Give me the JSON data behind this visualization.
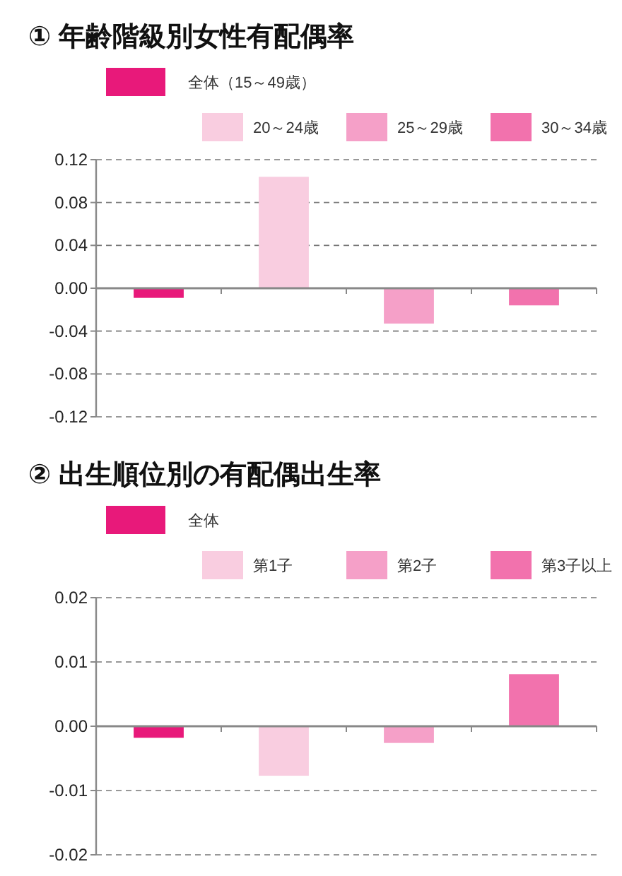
{
  "chart_data": [
    {
      "type": "bar",
      "title": "① 年齢階級別女性有配偶率",
      "categories": [
        null,
        null,
        null,
        null
      ],
      "series": [
        {
          "name": "全体（15～49歳）",
          "color": "#e8197a",
          "values": [
            -0.009,
            null,
            null,
            null
          ]
        },
        {
          "name": "20～24歳",
          "color": "#f9cde0",
          "values": [
            null,
            0.104,
            null,
            null
          ]
        },
        {
          "name": "25～29歳",
          "color": "#f5a0c8",
          "values": [
            null,
            null,
            -0.033,
            null
          ]
        },
        {
          "name": "30～34歳",
          "color": "#f272ad",
          "values": [
            null,
            null,
            null,
            -0.016
          ]
        }
      ],
      "ylim": [
        -0.12,
        0.12
      ],
      "yticks": [
        {
          "value": -0.12,
          "label": "-0.12"
        },
        {
          "value": -0.08,
          "label": "-0.08"
        },
        {
          "value": -0.04,
          "label": "-0.04"
        },
        {
          "value": 0,
          "label": "0.00"
        },
        {
          "value": 0.04,
          "label": "0.04"
        },
        {
          "value": 0.08,
          "label": "0.08"
        },
        {
          "value": 0.12,
          "label": "0.12"
        }
      ],
      "grid": "y",
      "legend": "top"
    },
    {
      "type": "bar",
      "title": "② 出生順位別の有配偶出生率",
      "categories": [
        null,
        null,
        null,
        null
      ],
      "series": [
        {
          "name": "全体",
          "color": "#e8197a",
          "values": [
            -0.0018,
            null,
            null,
            null
          ]
        },
        {
          "name": "第1子",
          "color": "#f9cde0",
          "values": [
            null,
            -0.0077,
            null,
            null
          ]
        },
        {
          "name": "第2子",
          "color": "#f5a0c8",
          "values": [
            null,
            null,
            -0.0026,
            null
          ]
        },
        {
          "name": "第3子以上",
          "color": "#f272ad",
          "values": [
            null,
            null,
            null,
            0.0081
          ]
        }
      ],
      "ylim": [
        -0.02,
        0.02
      ],
      "yticks": [
        {
          "value": -0.02,
          "label": "-0.02"
        },
        {
          "value": -0.01,
          "label": "-0.01"
        },
        {
          "value": 0,
          "label": "0.00"
        },
        {
          "value": 0.01,
          "label": "0.01"
        },
        {
          "value": 0.02,
          "label": "0.02"
        }
      ],
      "grid": "y",
      "legend": "top"
    }
  ]
}
